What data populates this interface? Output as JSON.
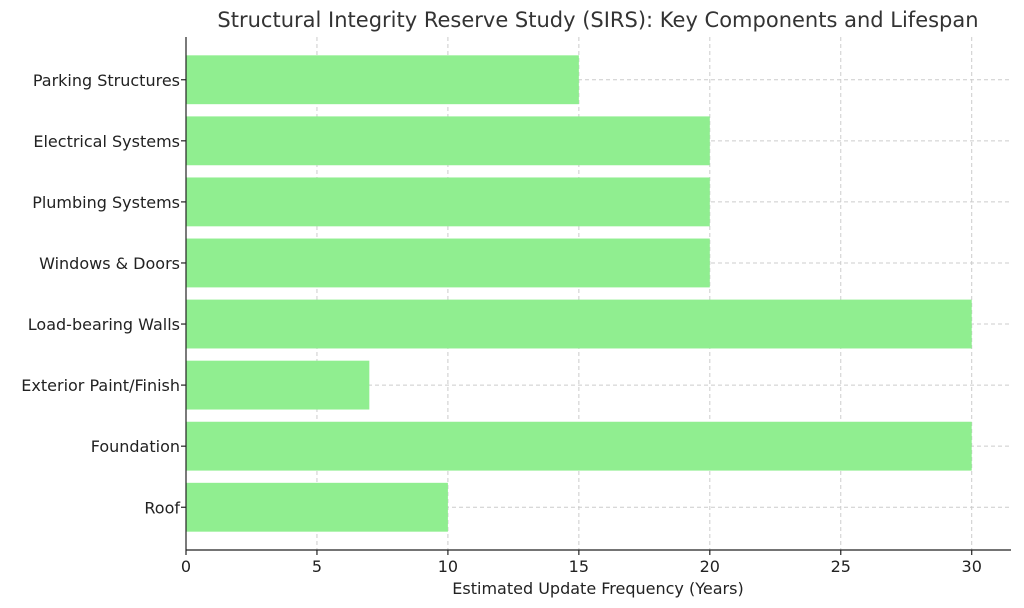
{
  "chart_data": {
    "type": "bar",
    "orientation": "horizontal",
    "title": "Structural Integrity Reserve Study (SIRS): Key Components and Lifespan",
    "xlabel": "Estimated Update Frequency (Years)",
    "ylabel": "",
    "categories": [
      "Roof",
      "Foundation",
      "Exterior Paint/Finish",
      "Load-bearing Walls",
      "Windows & Doors",
      "Plumbing Systems",
      "Electrical Systems",
      "Parking Structures"
    ],
    "values": [
      10,
      30,
      7,
      30,
      20,
      20,
      20,
      15
    ],
    "xlim": [
      0,
      31.5
    ],
    "xticks": [
      "0",
      "5",
      "10",
      "15",
      "20",
      "25",
      "30"
    ],
    "grid": true,
    "bar_color": "#90ee90"
  }
}
